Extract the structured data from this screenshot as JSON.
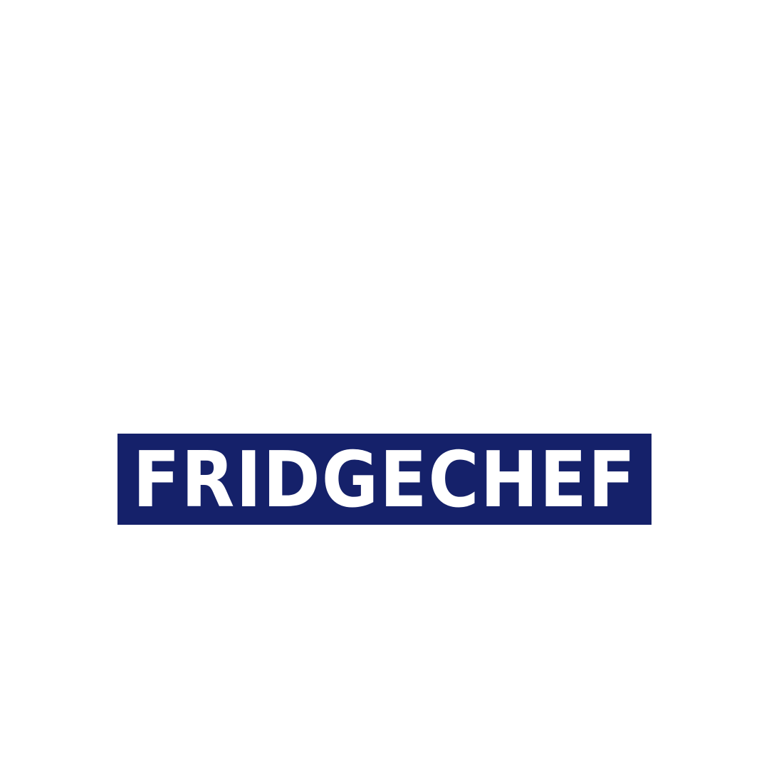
{
  "logo": {
    "text": "FRIDGECHEF",
    "background_color": "#15216a",
    "text_color": "#ffffff"
  },
  "page": {
    "background_color": "#ffffff"
  }
}
